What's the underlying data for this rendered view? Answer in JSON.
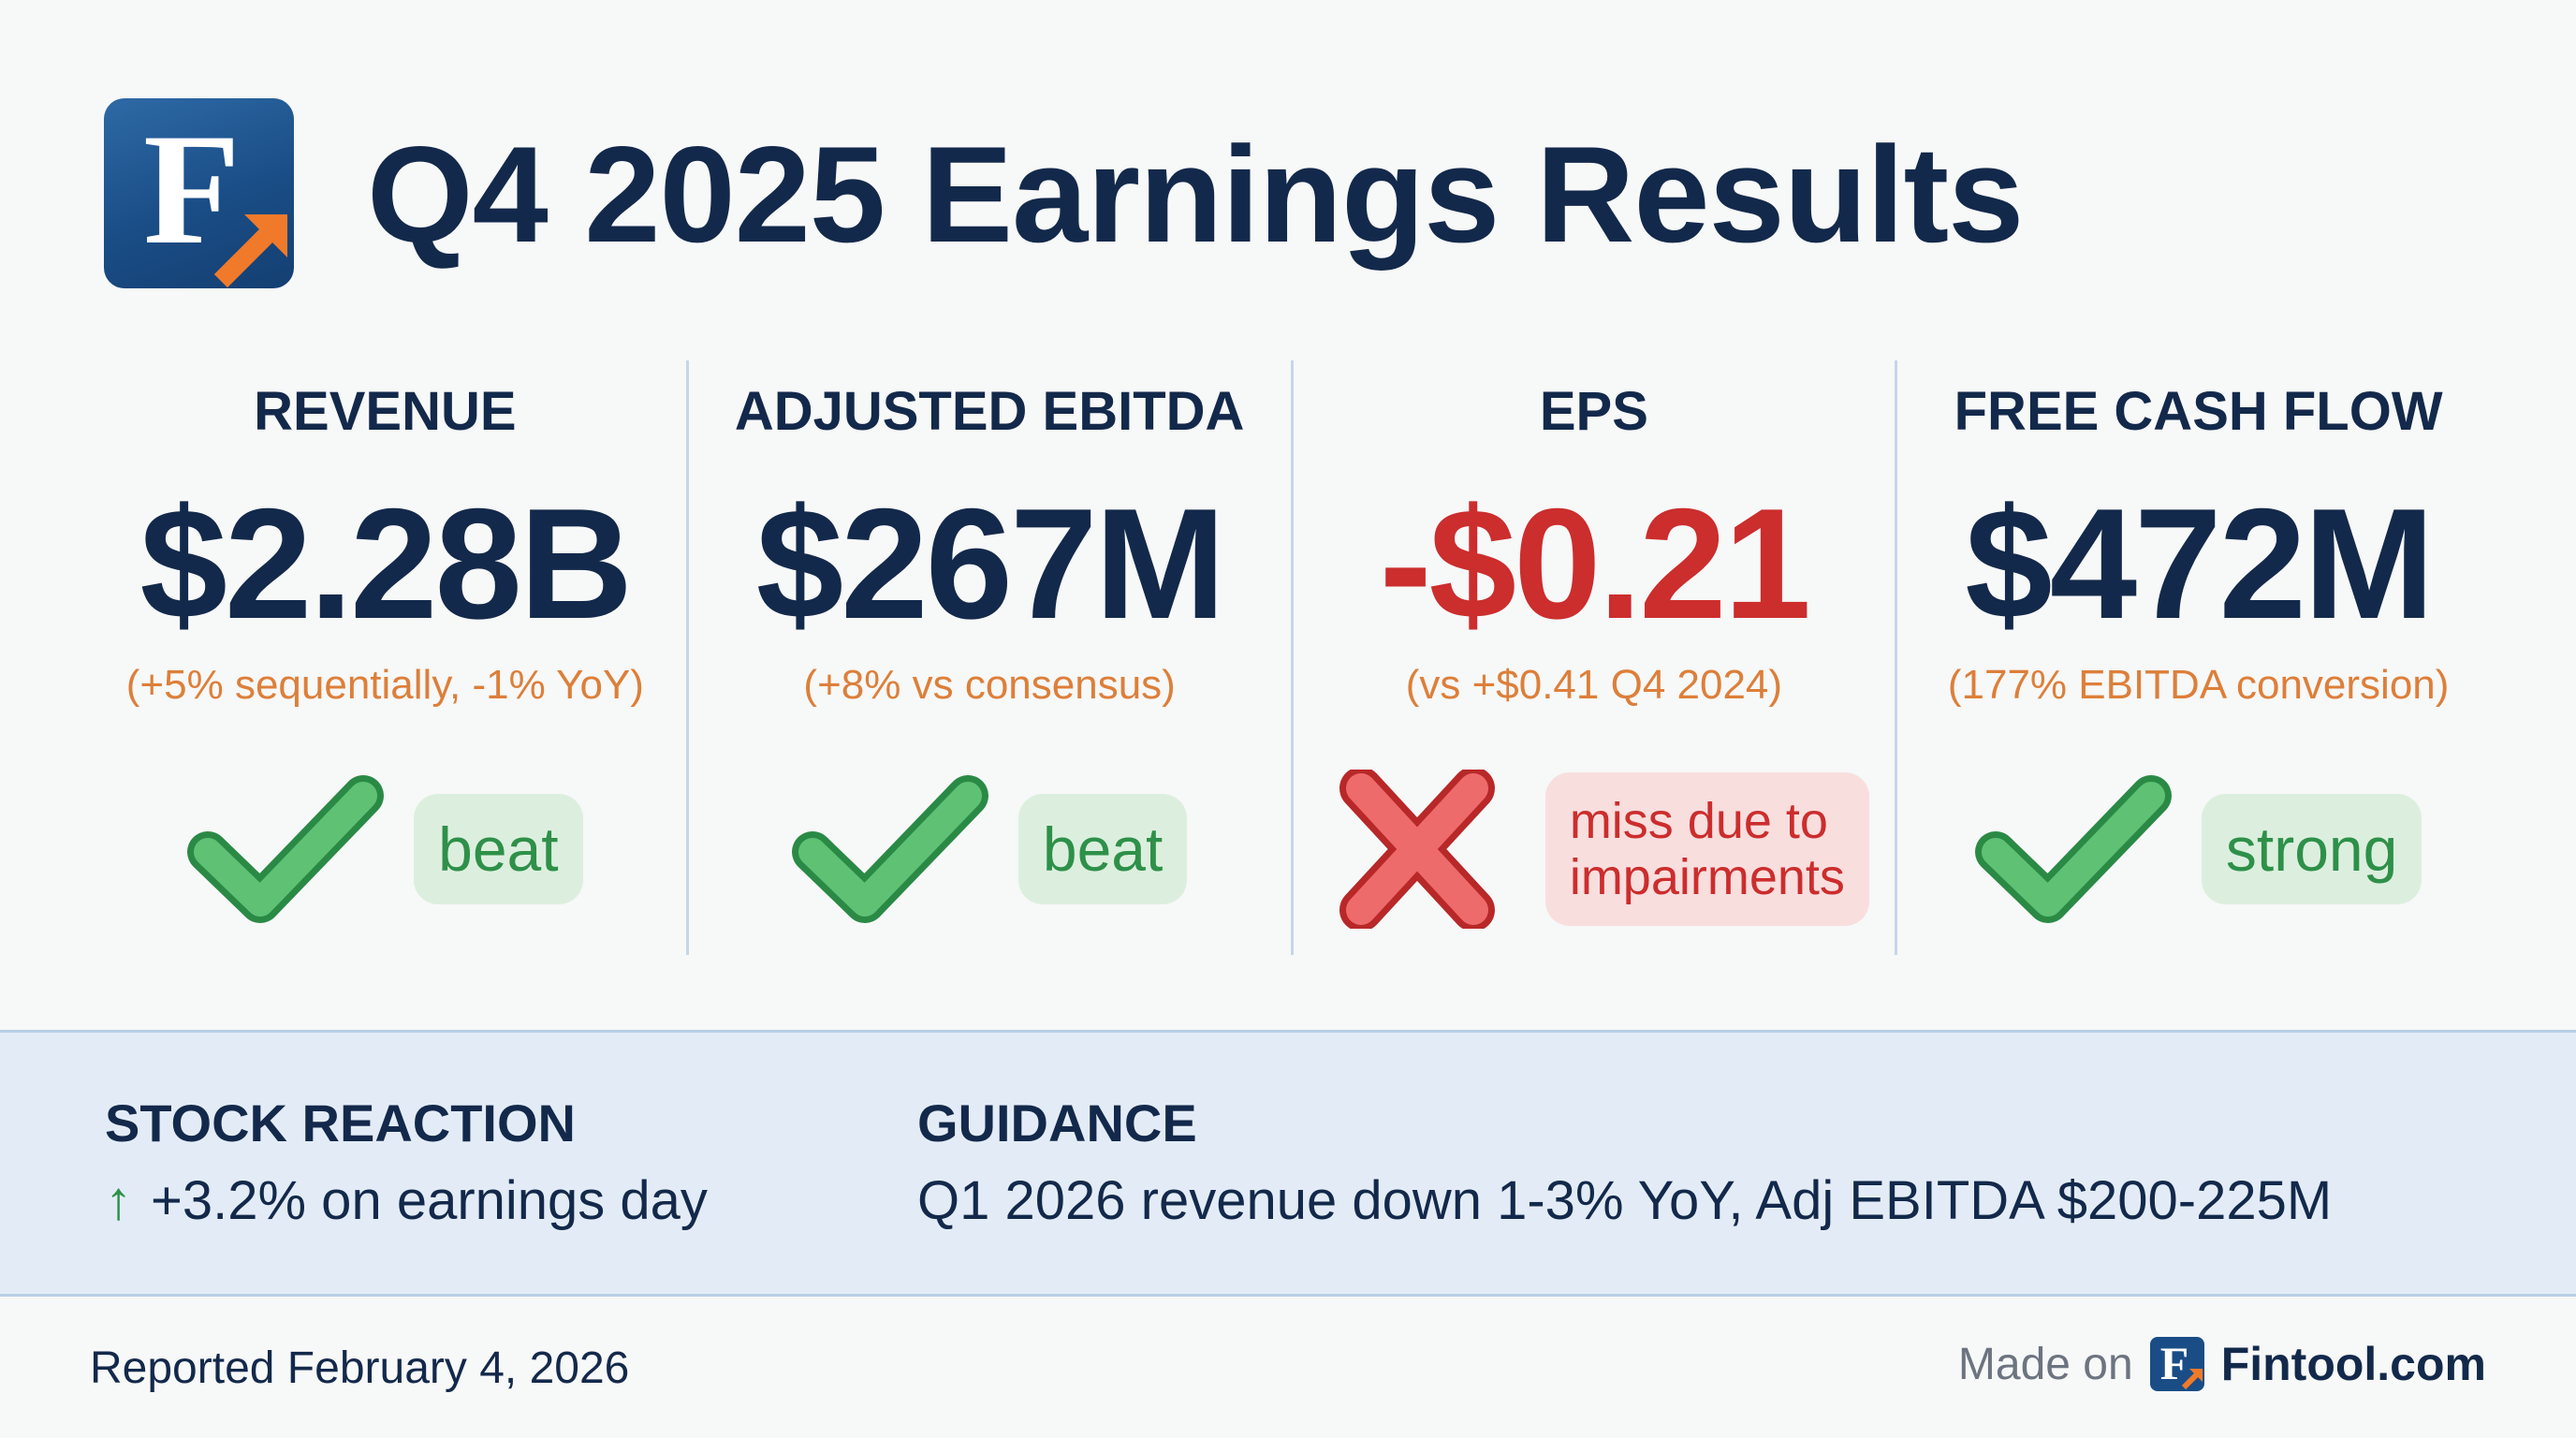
{
  "header": {
    "logo_letter": "F",
    "title": "Q4 2025 Earnings Results"
  },
  "metrics": [
    {
      "label": "REVENUE",
      "value": "$2.28B",
      "sub": "(+5% sequentially, -1% YoY)",
      "status": "beat",
      "status_icon": "check-icon",
      "tone": "good"
    },
    {
      "label": "ADJUSTED EBITDA",
      "value": "$267M",
      "sub": "(+8% vs consensus)",
      "status": "beat",
      "status_icon": "check-icon",
      "tone": "good"
    },
    {
      "label": "EPS",
      "value": "-$0.21",
      "sub": "(vs +$0.41 Q4 2024)",
      "status_line1": "miss due to",
      "status_line2": "impairments",
      "status_icon": "cross-icon",
      "tone": "bad"
    },
    {
      "label": "FREE CASH FLOW",
      "value": "$472M",
      "sub": "(177% EBITDA conversion)",
      "status": "strong",
      "status_icon": "check-icon",
      "tone": "good"
    }
  ],
  "stock_reaction": {
    "heading": "STOCK REACTION",
    "arrow": "↑",
    "text": "+3.2% on earnings day"
  },
  "guidance": {
    "heading": "GUIDANCE",
    "text": "Q1 2026 revenue down 1-3% YoY, Adj EBITDA $200-225M"
  },
  "footer": {
    "reported": "Reported February 4, 2026",
    "made_on": "Made on",
    "brand_letter": "F",
    "brand": "Fintool.com"
  },
  "colors": {
    "navy": "#13294b",
    "orange": "#dd7f3a",
    "green": "#2e9049",
    "red": "#cc2d2d",
    "band": "#e3ecf6"
  }
}
